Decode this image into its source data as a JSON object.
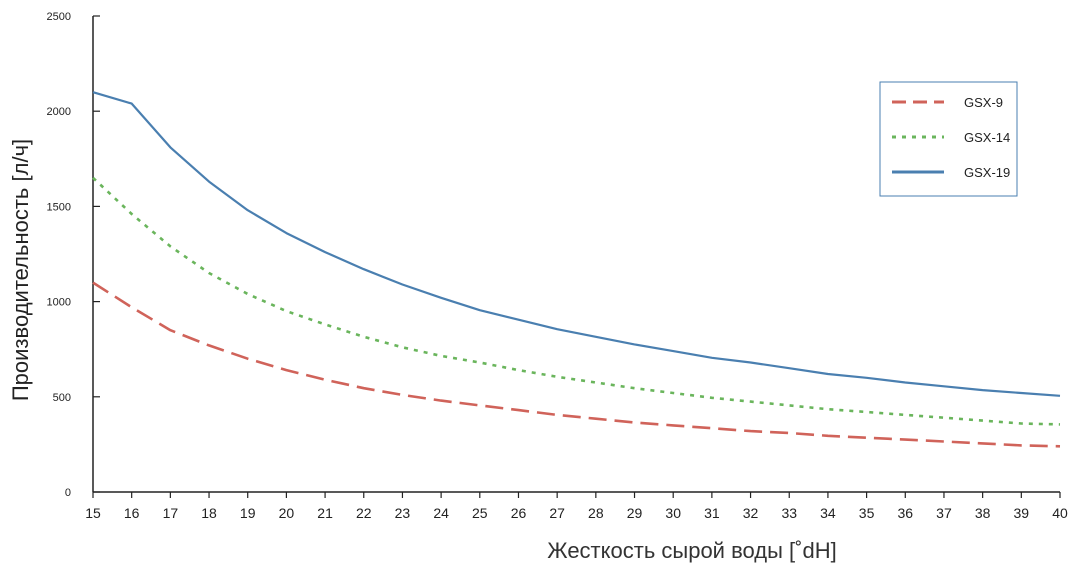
{
  "chart_data": {
    "type": "line",
    "xlabel": "Жесткость сырой воды [˚dH]",
    "ylabel": "Производительность [л/ч]",
    "xlim": [
      15,
      40
    ],
    "ylim": [
      0,
      2500
    ],
    "x": [
      15,
      16,
      17,
      18,
      19,
      20,
      21,
      22,
      23,
      24,
      25,
      26,
      27,
      28,
      29,
      30,
      31,
      32,
      33,
      34,
      35,
      36,
      37,
      38,
      39,
      40
    ],
    "x_ticks": [
      "15",
      "16",
      "17",
      "18",
      "19",
      "20",
      "21",
      "22",
      "23",
      "24",
      "25",
      "26",
      "27",
      "28",
      "29",
      "30",
      "31",
      "32",
      "33",
      "34",
      "35",
      "36",
      "37",
      "38",
      "39",
      "40"
    ],
    "y_ticks": [
      {
        "value": 0,
        "label": "0"
      },
      {
        "value": 500,
        "label": "500"
      },
      {
        "value": 1000,
        "label": "1000"
      },
      {
        "value": 1500,
        "label": "1500"
      },
      {
        "value": 2000,
        "label": "2000"
      },
      {
        "value": 2500,
        "label": "2500"
      }
    ],
    "grid": false,
    "legend_position": "top-right",
    "series": [
      {
        "name": "GSX-9",
        "color": "#d0635a",
        "style": "dashed",
        "values": [
          1100,
          970,
          850,
          770,
          700,
          640,
          590,
          545,
          510,
          480,
          455,
          430,
          405,
          385,
          365,
          350,
          335,
          320,
          310,
          295,
          285,
          275,
          265,
          255,
          245,
          240
        ]
      },
      {
        "name": "GSX-14",
        "color": "#6ab55c",
        "style": "dotted",
        "values": [
          1650,
          1460,
          1290,
          1150,
          1040,
          950,
          880,
          815,
          760,
          715,
          680,
          640,
          605,
          575,
          545,
          520,
          495,
          475,
          455,
          435,
          420,
          405,
          390,
          375,
          360,
          355
        ]
      },
      {
        "name": "GSX-19",
        "color": "#4a7fb0",
        "style": "solid",
        "values": [
          2100,
          2040,
          1810,
          1630,
          1480,
          1360,
          1260,
          1170,
          1090,
          1020,
          955,
          905,
          855,
          815,
          775,
          740,
          705,
          680,
          650,
          620,
          600,
          575,
          555,
          535,
          520,
          505
        ]
      }
    ]
  }
}
